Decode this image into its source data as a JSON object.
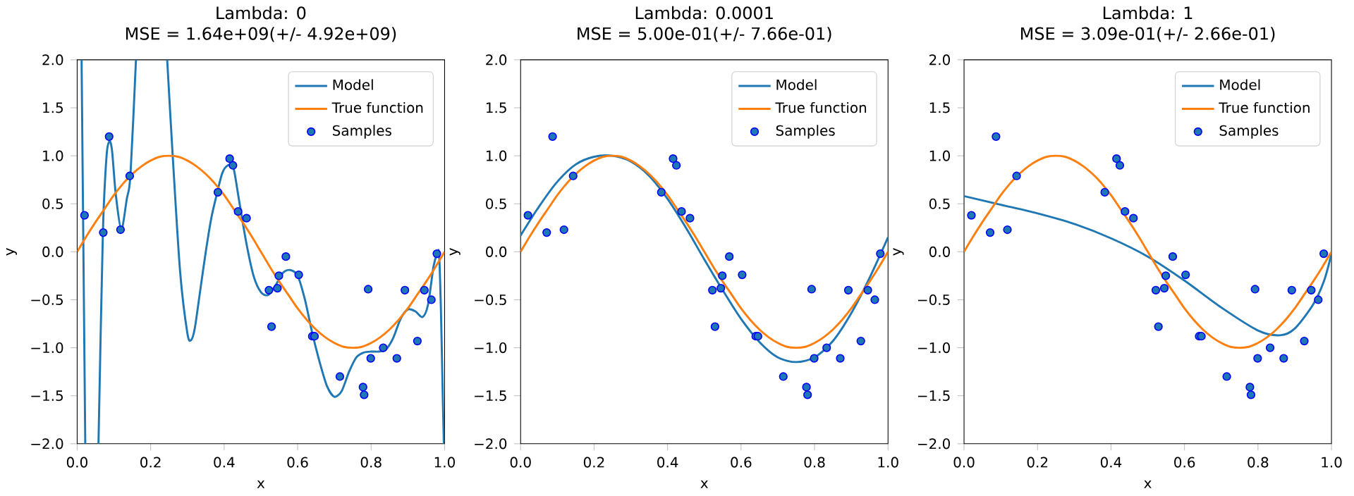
{
  "chart_data": [
    {
      "type": "line",
      "title": "Lambda: 0",
      "subtitle": "MSE = 1.64e+09(+/- 4.92e+09)",
      "xlabel": "x",
      "ylabel": "y",
      "xlim": [
        0,
        1
      ],
      "ylim": [
        -2,
        2
      ],
      "xticks": [
        {
          "value": 0,
          "label": "0.0"
        },
        {
          "value": 0.2,
          "label": "0.2"
        },
        {
          "value": 0.4,
          "label": "0.4"
        },
        {
          "value": 0.6,
          "label": "0.6"
        },
        {
          "value": 0.8,
          "label": "0.8"
        },
        {
          "value": 1,
          "label": "1.0"
        }
      ],
      "yticks": [
        {
          "value": -2,
          "label": "−2.0"
        },
        {
          "value": -1.5,
          "label": "−1.5"
        },
        {
          "value": -1,
          "label": "−1.0"
        },
        {
          "value": -0.5,
          "label": "−0.5"
        },
        {
          "value": 0,
          "label": "0.0"
        },
        {
          "value": 0.5,
          "label": "0.5"
        },
        {
          "value": 1,
          "label": "1.0"
        },
        {
          "value": 1.5,
          "label": "1.5"
        },
        {
          "value": 2,
          "label": "2.0"
        }
      ],
      "legend": "top right",
      "series": [
        {
          "name": "Model",
          "color": "#1f77b4",
          "x": [
            0.012,
            0.022,
            0.04,
            0.058,
            0.07,
            0.08,
            0.088,
            0.095,
            0.105,
            0.12,
            0.135,
            0.145,
            0.16,
            0.2,
            0.245,
            0.26,
            0.28,
            0.3,
            0.31,
            0.32,
            0.335,
            0.35,
            0.365,
            0.38,
            0.395,
            0.41,
            0.425,
            0.44,
            0.46,
            0.48,
            0.5,
            0.52,
            0.54,
            0.56,
            0.58,
            0.6,
            0.62,
            0.64,
            0.66,
            0.68,
            0.7,
            0.72,
            0.74,
            0.76,
            0.78,
            0.8,
            0.82,
            0.84,
            0.86,
            0.88,
            0.9,
            0.92,
            0.94,
            0.955,
            0.97,
            0.98,
            0.985,
            0.99,
            0.995,
            0.998
          ],
          "values": [
            2.0,
            -2.0,
            null,
            -2.0,
            0.2,
            1.0,
            1.15,
            1.05,
            0.6,
            0.23,
            0.55,
            0.8,
            2.0,
            null,
            2.0,
            1.0,
            -0.2,
            -0.85,
            -0.92,
            -0.8,
            -0.4,
            0.0,
            0.35,
            0.6,
            0.82,
            0.9,
            0.88,
            0.55,
            0.1,
            -0.25,
            -0.42,
            -0.45,
            -0.35,
            -0.22,
            -0.19,
            -0.25,
            -0.5,
            -0.85,
            -1.15,
            -1.4,
            -1.51,
            -1.45,
            -1.25,
            -1.1,
            -1.05,
            -1.04,
            -1.04,
            -1.02,
            -0.9,
            -0.7,
            -0.6,
            -0.62,
            -0.68,
            -0.55,
            -0.15,
            -0.02,
            -0.02,
            -0.6,
            -1.5,
            -2.0
          ]
        },
        {
          "name": "True function",
          "color": "#ff7f0e",
          "x": [
            0,
            0.025,
            0.05,
            0.075,
            0.1,
            0.125,
            0.15,
            0.175,
            0.2,
            0.225,
            0.25,
            0.275,
            0.3,
            0.325,
            0.35,
            0.375,
            0.4,
            0.425,
            0.45,
            0.475,
            0.5,
            0.525,
            0.55,
            0.575,
            0.6,
            0.625,
            0.65,
            0.675,
            0.7,
            0.725,
            0.75,
            0.775,
            0.8,
            0.825,
            0.85,
            0.875,
            0.9,
            0.925,
            0.95,
            0.975,
            1
          ],
          "values": [
            0,
            0.16,
            0.31,
            0.45,
            0.59,
            0.71,
            0.81,
            0.89,
            0.95,
            0.99,
            1,
            0.99,
            0.95,
            0.89,
            0.81,
            0.71,
            0.59,
            0.45,
            0.31,
            0.16,
            0,
            -0.16,
            -0.31,
            -0.45,
            -0.59,
            -0.71,
            -0.81,
            -0.89,
            -0.95,
            -0.99,
            -1,
            -0.99,
            -0.95,
            -0.89,
            -0.81,
            -0.71,
            -0.59,
            -0.45,
            -0.31,
            -0.16,
            0
          ]
        },
        {
          "name": "Samples",
          "type": "scatter",
          "marker": "circle",
          "color": "#1f77b4",
          "x": [
            0.02,
            0.071,
            0.087,
            0.118,
            0.143,
            0.383,
            0.415,
            0.424,
            0.438,
            0.461,
            0.522,
            0.529,
            0.545,
            0.549,
            0.568,
            0.603,
            0.64,
            0.646,
            0.715,
            0.778,
            0.781,
            0.792,
            0.799,
            0.833,
            0.87,
            0.892,
            0.926,
            0.945,
            0.964,
            0.979
          ],
          "values": [
            0.38,
            0.2,
            1.2,
            0.23,
            0.79,
            0.62,
            0.97,
            0.9,
            0.42,
            0.35,
            -0.4,
            -0.78,
            -0.38,
            -0.25,
            -0.05,
            -0.24,
            -0.88,
            -0.88,
            -1.3,
            -1.41,
            -1.49,
            -0.39,
            -1.11,
            -1.0,
            -1.11,
            -0.4,
            -0.93,
            -0.4,
            -0.5,
            -0.02
          ]
        }
      ]
    },
    {
      "type": "line",
      "title": "Lambda: 0.0001",
      "subtitle": "MSE = 5.00e-01(+/- 7.66e-01)",
      "xlabel": "x",
      "ylabel": "y",
      "xlim": [
        0,
        1
      ],
      "ylim": [
        -2,
        2
      ],
      "xticks": [
        {
          "value": 0,
          "label": "0.0"
        },
        {
          "value": 0.2,
          "label": "0.2"
        },
        {
          "value": 0.4,
          "label": "0.4"
        },
        {
          "value": 0.6,
          "label": "0.6"
        },
        {
          "value": 0.8,
          "label": "0.8"
        },
        {
          "value": 1,
          "label": "1.0"
        }
      ],
      "yticks": [
        {
          "value": -2,
          "label": "−2.0"
        },
        {
          "value": -1.5,
          "label": "−1.5"
        },
        {
          "value": -1,
          "label": "−1.0"
        },
        {
          "value": -0.5,
          "label": "−0.5"
        },
        {
          "value": 0,
          "label": "0.0"
        },
        {
          "value": 0.5,
          "label": "0.5"
        },
        {
          "value": 1,
          "label": "1.0"
        },
        {
          "value": 1.5,
          "label": "1.5"
        },
        {
          "value": 2,
          "label": "2.0"
        }
      ],
      "legend": "top right",
      "series": [
        {
          "name": "Model",
          "color": "#1f77b4",
          "x": [
            0,
            0.05,
            0.1,
            0.15,
            0.2,
            0.25,
            0.3,
            0.35,
            0.4,
            0.45,
            0.5,
            0.55,
            0.6,
            0.65,
            0.7,
            0.75,
            0.8,
            0.85,
            0.9,
            0.95,
            1
          ],
          "values": [
            0.17,
            0.47,
            0.73,
            0.91,
            0.99,
            1.0,
            0.94,
            0.79,
            0.55,
            0.25,
            -0.08,
            -0.4,
            -0.7,
            -0.94,
            -1.1,
            -1.15,
            -1.1,
            -0.93,
            -0.64,
            -0.27,
            0.15
          ]
        },
        {
          "name": "True function",
          "color": "#ff7f0e",
          "x": [
            0,
            0.025,
            0.05,
            0.075,
            0.1,
            0.125,
            0.15,
            0.175,
            0.2,
            0.225,
            0.25,
            0.275,
            0.3,
            0.325,
            0.35,
            0.375,
            0.4,
            0.425,
            0.45,
            0.475,
            0.5,
            0.525,
            0.55,
            0.575,
            0.6,
            0.625,
            0.65,
            0.675,
            0.7,
            0.725,
            0.75,
            0.775,
            0.8,
            0.825,
            0.85,
            0.875,
            0.9,
            0.925,
            0.95,
            0.975,
            1
          ],
          "values": [
            0,
            0.16,
            0.31,
            0.45,
            0.59,
            0.71,
            0.81,
            0.89,
            0.95,
            0.99,
            1,
            0.99,
            0.95,
            0.89,
            0.81,
            0.71,
            0.59,
            0.45,
            0.31,
            0.16,
            0,
            -0.16,
            -0.31,
            -0.45,
            -0.59,
            -0.71,
            -0.81,
            -0.89,
            -0.95,
            -0.99,
            -1,
            -0.99,
            -0.95,
            -0.89,
            -0.81,
            -0.71,
            -0.59,
            -0.45,
            -0.31,
            -0.16,
            0
          ]
        },
        {
          "name": "Samples",
          "type": "scatter",
          "marker": "circle",
          "color": "#1f77b4",
          "x": [
            0.02,
            0.071,
            0.087,
            0.118,
            0.143,
            0.383,
            0.415,
            0.424,
            0.438,
            0.461,
            0.522,
            0.529,
            0.545,
            0.549,
            0.568,
            0.603,
            0.64,
            0.646,
            0.715,
            0.778,
            0.781,
            0.792,
            0.799,
            0.833,
            0.87,
            0.892,
            0.926,
            0.945,
            0.964,
            0.979
          ],
          "values": [
            0.38,
            0.2,
            1.2,
            0.23,
            0.79,
            0.62,
            0.97,
            0.9,
            0.42,
            0.35,
            -0.4,
            -0.78,
            -0.38,
            -0.25,
            -0.05,
            -0.24,
            -0.88,
            -0.88,
            -1.3,
            -1.41,
            -1.49,
            -0.39,
            -1.11,
            -1.0,
            -1.11,
            -0.4,
            -0.93,
            -0.4,
            -0.5,
            -0.02
          ]
        }
      ]
    },
    {
      "type": "line",
      "title": "Lambda: 1",
      "subtitle": "MSE = 3.09e-01(+/- 2.66e-01)",
      "xlabel": "x",
      "ylabel": "y",
      "xlim": [
        0,
        1
      ],
      "ylim": [
        -2,
        2
      ],
      "xticks": [
        {
          "value": 0,
          "label": "0.0"
        },
        {
          "value": 0.2,
          "label": "0.2"
        },
        {
          "value": 0.4,
          "label": "0.4"
        },
        {
          "value": 0.6,
          "label": "0.6"
        },
        {
          "value": 0.8,
          "label": "0.8"
        },
        {
          "value": 1,
          "label": "1.0"
        }
      ],
      "yticks": [
        {
          "value": -2,
          "label": "−2.0"
        },
        {
          "value": -1.5,
          "label": "−1.5"
        },
        {
          "value": -1,
          "label": "−1.0"
        },
        {
          "value": -0.5,
          "label": "−0.5"
        },
        {
          "value": 0,
          "label": "0.0"
        },
        {
          "value": 0.5,
          "label": "0.5"
        },
        {
          "value": 1,
          "label": "1.0"
        },
        {
          "value": 1.5,
          "label": "1.5"
        },
        {
          "value": 2,
          "label": "2.0"
        }
      ],
      "legend": "top right",
      "series": [
        {
          "name": "Model",
          "color": "#1f77b4",
          "x": [
            0,
            0.1,
            0.2,
            0.3,
            0.4,
            0.5,
            0.6,
            0.7,
            0.8,
            0.86,
            0.9,
            0.95,
            0.98,
            1
          ],
          "values": [
            0.58,
            0.49,
            0.4,
            0.29,
            0.14,
            -0.05,
            -0.3,
            -0.58,
            -0.82,
            -0.87,
            -0.8,
            -0.55,
            -0.3,
            -0.02
          ]
        },
        {
          "name": "True function",
          "color": "#ff7f0e",
          "x": [
            0,
            0.025,
            0.05,
            0.075,
            0.1,
            0.125,
            0.15,
            0.175,
            0.2,
            0.225,
            0.25,
            0.275,
            0.3,
            0.325,
            0.35,
            0.375,
            0.4,
            0.425,
            0.45,
            0.475,
            0.5,
            0.525,
            0.55,
            0.575,
            0.6,
            0.625,
            0.65,
            0.675,
            0.7,
            0.725,
            0.75,
            0.775,
            0.8,
            0.825,
            0.85,
            0.875,
            0.9,
            0.925,
            0.95,
            0.975,
            1
          ],
          "values": [
            0,
            0.16,
            0.31,
            0.45,
            0.59,
            0.71,
            0.81,
            0.89,
            0.95,
            0.99,
            1,
            0.99,
            0.95,
            0.89,
            0.81,
            0.71,
            0.59,
            0.45,
            0.31,
            0.16,
            0,
            -0.16,
            -0.31,
            -0.45,
            -0.59,
            -0.71,
            -0.81,
            -0.89,
            -0.95,
            -0.99,
            -1,
            -0.99,
            -0.95,
            -0.89,
            -0.81,
            -0.71,
            -0.59,
            -0.45,
            -0.31,
            -0.16,
            0
          ]
        },
        {
          "name": "Samples",
          "type": "scatter",
          "marker": "circle",
          "color": "#1f77b4",
          "x": [
            0.02,
            0.071,
            0.087,
            0.118,
            0.143,
            0.383,
            0.415,
            0.424,
            0.438,
            0.461,
            0.522,
            0.529,
            0.545,
            0.549,
            0.568,
            0.603,
            0.64,
            0.646,
            0.715,
            0.778,
            0.781,
            0.792,
            0.799,
            0.833,
            0.87,
            0.892,
            0.926,
            0.945,
            0.964,
            0.979
          ],
          "values": [
            0.38,
            0.2,
            1.2,
            0.23,
            0.79,
            0.62,
            0.97,
            0.9,
            0.42,
            0.35,
            -0.4,
            -0.78,
            -0.38,
            -0.25,
            -0.05,
            -0.24,
            -0.88,
            -0.88,
            -1.3,
            -1.41,
            -1.49,
            -0.39,
            -1.11,
            -1.0,
            -1.11,
            -0.4,
            -0.93,
            -0.4,
            -0.5,
            -0.02
          ]
        }
      ]
    }
  ]
}
